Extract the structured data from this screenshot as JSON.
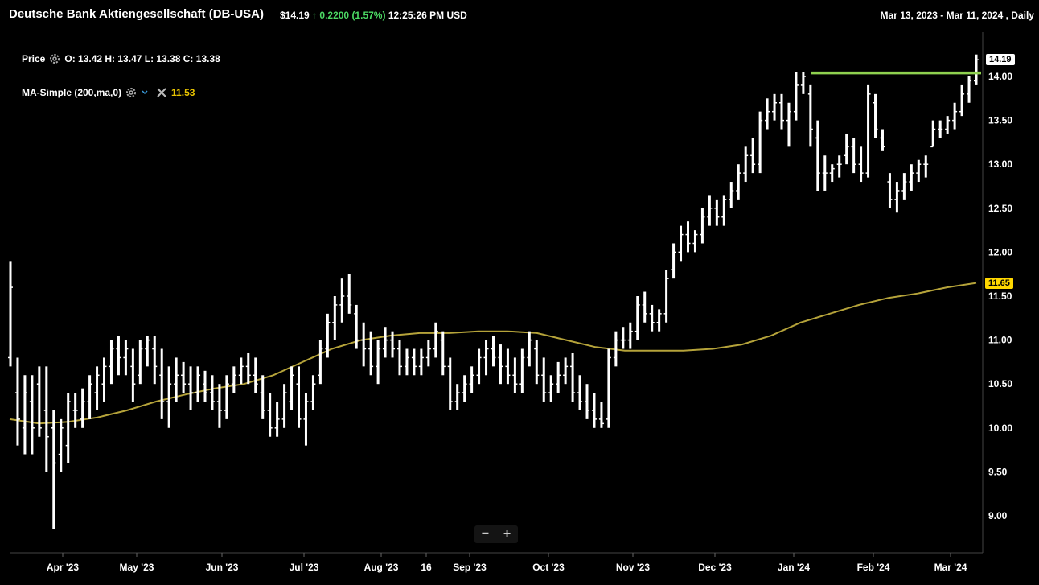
{
  "header": {
    "title": "Deutsche Bank Aktiengesellschaft (DB-USA)",
    "price": "$14.19",
    "arrow": "↑",
    "change": "0.2200",
    "change_pct": "(1.57%)",
    "time": "12:25:26 PM USD",
    "range": "Mar 13, 2023 - Mar 11, 2024 , Daily"
  },
  "legend": {
    "price_label": "Price",
    "ohlc": "O: 13.42  H: 13.47  L: 13.38  C: 13.38",
    "ma_label": "MA-Simple (200,ma,0)",
    "ma_value": "11.53"
  },
  "tags": {
    "last_price": "14.19",
    "ma_last": "11.65"
  },
  "zoom": {
    "minus": "−",
    "plus": "+"
  },
  "colors": {
    "bars": "#ffffff",
    "ma": "#b5a33a",
    "resistance": "#8fd14f",
    "ma_tag": "#ffd700"
  },
  "chart_data": {
    "type": "ohlc",
    "yticks": [
      "14.00",
      "13.50",
      "13.00",
      "12.50",
      "12.00",
      "11.50",
      "11.00",
      "10.50",
      "10.00",
      "9.50",
      "9.00"
    ],
    "ylim": [
      8.6,
      14.4
    ],
    "xticks": [
      "Apr '23",
      "May '23",
      "Jun '23",
      "Jul '23",
      "Aug '23",
      "16",
      "Sep '23",
      "Oct '23",
      "Nov '23",
      "Dec '23",
      "Jan '24",
      "Feb '24",
      "Mar '24"
    ],
    "resistance": 14.04,
    "ohlc": [
      [
        10.8,
        11.9,
        10.7,
        11.6
      ],
      [
        10.4,
        10.8,
        9.8,
        10.1
      ],
      [
        10.0,
        10.6,
        9.7,
        10.4
      ],
      [
        10.3,
        10.6,
        9.7,
        10.0
      ],
      [
        10.5,
        10.7,
        9.9,
        10.0
      ],
      [
        10.2,
        10.7,
        9.5,
        9.9
      ],
      [
        10.0,
        10.2,
        8.85,
        9.6
      ],
      [
        9.7,
        10.1,
        9.5,
        10.0
      ],
      [
        9.8,
        10.4,
        9.6,
        10.3
      ],
      [
        10.2,
        10.4,
        10.0,
        10.2
      ],
      [
        10.1,
        10.45,
        10.0,
        10.3
      ],
      [
        10.3,
        10.6,
        10.1,
        10.5
      ],
      [
        10.4,
        10.7,
        10.2,
        10.6
      ],
      [
        10.5,
        10.8,
        10.3,
        10.7
      ],
      [
        10.7,
        11.0,
        10.5,
        10.9
      ],
      [
        10.9,
        11.05,
        10.6,
        10.8
      ],
      [
        10.8,
        11.0,
        10.6,
        10.9
      ],
      [
        10.7,
        10.9,
        10.3,
        10.5
      ],
      [
        10.6,
        11.0,
        10.5,
        10.9
      ],
      [
        10.9,
        11.05,
        10.7,
        11.0
      ],
      [
        10.9,
        11.05,
        10.5,
        10.7
      ],
      [
        10.6,
        10.9,
        10.1,
        10.3
      ],
      [
        10.3,
        10.7,
        10.0,
        10.5
      ],
      [
        10.5,
        10.8,
        10.3,
        10.6
      ],
      [
        10.6,
        10.75,
        10.4,
        10.5
      ],
      [
        10.5,
        10.7,
        10.2,
        10.4
      ],
      [
        10.4,
        10.7,
        10.3,
        10.6
      ],
      [
        10.5,
        10.65,
        10.3,
        10.4
      ],
      [
        10.4,
        10.6,
        10.2,
        10.3
      ],
      [
        10.3,
        10.5,
        10.0,
        10.2
      ],
      [
        10.2,
        10.6,
        10.1,
        10.5
      ],
      [
        10.5,
        10.7,
        10.4,
        10.6
      ],
      [
        10.6,
        10.8,
        10.5,
        10.7
      ],
      [
        10.7,
        10.85,
        10.5,
        10.6
      ],
      [
        10.6,
        10.8,
        10.4,
        10.5
      ],
      [
        10.4,
        10.6,
        10.1,
        10.2
      ],
      [
        10.2,
        10.4,
        9.9,
        10.0
      ],
      [
        10.0,
        10.3,
        9.9,
        10.1
      ],
      [
        10.1,
        10.5,
        10.0,
        10.4
      ],
      [
        10.3,
        10.7,
        10.2,
        10.6
      ],
      [
        10.5,
        10.7,
        10.0,
        10.1
      ],
      [
        10.1,
        10.4,
        9.8,
        10.3
      ],
      [
        10.3,
        10.6,
        10.2,
        10.5
      ],
      [
        10.6,
        11.0,
        10.5,
        10.9
      ],
      [
        10.9,
        11.3,
        10.8,
        11.2
      ],
      [
        11.2,
        11.5,
        11.0,
        11.4
      ],
      [
        11.4,
        11.7,
        11.2,
        11.5
      ],
      [
        11.5,
        11.75,
        11.3,
        11.4
      ],
      [
        11.3,
        11.4,
        10.9,
        11.0
      ],
      [
        11.0,
        11.2,
        10.7,
        10.9
      ],
      [
        10.9,
        11.1,
        10.6,
        10.7
      ],
      [
        10.7,
        11.0,
        10.5,
        10.9
      ],
      [
        10.9,
        11.15,
        10.8,
        11.0
      ],
      [
        11.0,
        11.1,
        10.8,
        10.9
      ],
      [
        10.9,
        11.0,
        10.6,
        10.7
      ],
      [
        10.7,
        10.9,
        10.6,
        10.8
      ],
      [
        10.8,
        10.9,
        10.6,
        10.7
      ],
      [
        10.7,
        10.9,
        10.6,
        10.8
      ],
      [
        10.8,
        11.0,
        10.7,
        10.9
      ],
      [
        10.9,
        11.2,
        10.8,
        11.1
      ],
      [
        11.0,
        11.1,
        10.6,
        10.7
      ],
      [
        10.7,
        10.8,
        10.2,
        10.3
      ],
      [
        10.3,
        10.5,
        10.2,
        10.4
      ],
      [
        10.4,
        10.6,
        10.3,
        10.5
      ],
      [
        10.5,
        10.7,
        10.4,
        10.6
      ],
      [
        10.6,
        10.9,
        10.5,
        10.8
      ],
      [
        10.8,
        11.0,
        10.6,
        10.9
      ],
      [
        10.9,
        11.05,
        10.7,
        10.8
      ],
      [
        10.8,
        10.95,
        10.5,
        10.7
      ],
      [
        10.7,
        10.9,
        10.5,
        10.6
      ],
      [
        10.6,
        10.8,
        10.4,
        10.5
      ],
      [
        10.5,
        10.9,
        10.4,
        10.8
      ],
      [
        10.8,
        11.1,
        10.7,
        11.0
      ],
      [
        10.9,
        11.0,
        10.5,
        10.6
      ],
      [
        10.6,
        10.8,
        10.3,
        10.4
      ],
      [
        10.4,
        10.6,
        10.3,
        10.5
      ],
      [
        10.5,
        10.75,
        10.4,
        10.6
      ],
      [
        10.6,
        10.8,
        10.5,
        10.7
      ],
      [
        10.7,
        10.85,
        10.3,
        10.4
      ],
      [
        10.4,
        10.6,
        10.2,
        10.3
      ],
      [
        10.3,
        10.5,
        10.1,
        10.2
      ],
      [
        10.2,
        10.4,
        10.0,
        10.1
      ],
      [
        10.1,
        10.3,
        10.0,
        10.05
      ],
      [
        10.1,
        10.9,
        10.0,
        10.8
      ],
      [
        10.8,
        11.1,
        10.7,
        11.0
      ],
      [
        11.0,
        11.15,
        10.9,
        11.0
      ],
      [
        11.0,
        11.2,
        10.9,
        11.1
      ],
      [
        11.1,
        11.5,
        11.0,
        11.4
      ],
      [
        11.4,
        11.55,
        11.2,
        11.3
      ],
      [
        11.3,
        11.4,
        11.1,
        11.2
      ],
      [
        11.2,
        11.35,
        11.1,
        11.3
      ],
      [
        11.3,
        11.8,
        11.2,
        11.7
      ],
      [
        11.8,
        12.1,
        11.7,
        12.0
      ],
      [
        12.0,
        12.3,
        11.9,
        12.2
      ],
      [
        12.2,
        12.35,
        12.0,
        12.1
      ],
      [
        12.1,
        12.25,
        12.0,
        12.2
      ],
      [
        12.2,
        12.5,
        12.1,
        12.4
      ],
      [
        12.4,
        12.65,
        12.3,
        12.5
      ],
      [
        12.5,
        12.6,
        12.3,
        12.4
      ],
      [
        12.4,
        12.65,
        12.3,
        12.6
      ],
      [
        12.6,
        12.8,
        12.5,
        12.7
      ],
      [
        12.7,
        13.0,
        12.6,
        12.9
      ],
      [
        12.9,
        13.2,
        12.8,
        13.1
      ],
      [
        13.1,
        13.3,
        12.9,
        13.0
      ],
      [
        13.0,
        13.6,
        12.9,
        13.5
      ],
      [
        13.5,
        13.75,
        13.4,
        13.6
      ],
      [
        13.6,
        13.8,
        13.5,
        13.7
      ],
      [
        13.7,
        13.8,
        13.4,
        13.5
      ],
      [
        13.5,
        13.7,
        13.2,
        13.6
      ],
      [
        13.6,
        14.05,
        13.5,
        13.9
      ],
      [
        13.9,
        14.05,
        13.8,
        14.0
      ],
      [
        13.8,
        13.9,
        13.2,
        13.4
      ],
      [
        13.3,
        13.5,
        12.7,
        12.9
      ],
      [
        12.9,
        13.1,
        12.7,
        12.9
      ],
      [
        12.9,
        13.0,
        12.8,
        12.95
      ],
      [
        13.0,
        13.1,
        12.85,
        13.0
      ],
      [
        13.1,
        13.35,
        13.0,
        13.2
      ],
      [
        13.2,
        13.3,
        12.9,
        13.0
      ],
      [
        13.0,
        13.2,
        12.8,
        12.9
      ],
      [
        12.9,
        13.9,
        12.85,
        13.8
      ],
      [
        13.7,
        13.8,
        13.3,
        13.4
      ],
      [
        13.3,
        13.4,
        13.15,
        13.2
      ],
      [
        12.8,
        12.9,
        12.5,
        12.6
      ],
      [
        12.6,
        12.8,
        12.45,
        12.7
      ],
      [
        12.7,
        12.9,
        12.6,
        12.8
      ],
      [
        12.8,
        13.0,
        12.7,
        12.9
      ],
      [
        12.9,
        13.05,
        12.8,
        13.0
      ],
      [
        13.0,
        13.1,
        12.85,
        13.0
      ],
      [
        13.2,
        13.5,
        13.2,
        13.4
      ],
      [
        13.4,
        13.5,
        13.3,
        13.4
      ],
      [
        13.4,
        13.55,
        13.35,
        13.5
      ],
      [
        13.5,
        13.7,
        13.4,
        13.6
      ],
      [
        13.6,
        13.9,
        13.55,
        13.8
      ],
      [
        13.8,
        14.0,
        13.7,
        13.95
      ],
      [
        13.95,
        14.25,
        13.9,
        14.19
      ]
    ],
    "ma": [
      10.1,
      10.05,
      10.07,
      10.12,
      10.2,
      10.3,
      10.38,
      10.45,
      10.5,
      10.6,
      10.75,
      10.9,
      11.0,
      11.05,
      11.08,
      11.08,
      11.1,
      11.1,
      11.08,
      11.0,
      10.92,
      10.88,
      10.88,
      10.88,
      10.9,
      10.95,
      11.05,
      11.2,
      11.3,
      11.4,
      11.48,
      11.53,
      11.6,
      11.65
    ],
    "ma_last": 11.65
  }
}
